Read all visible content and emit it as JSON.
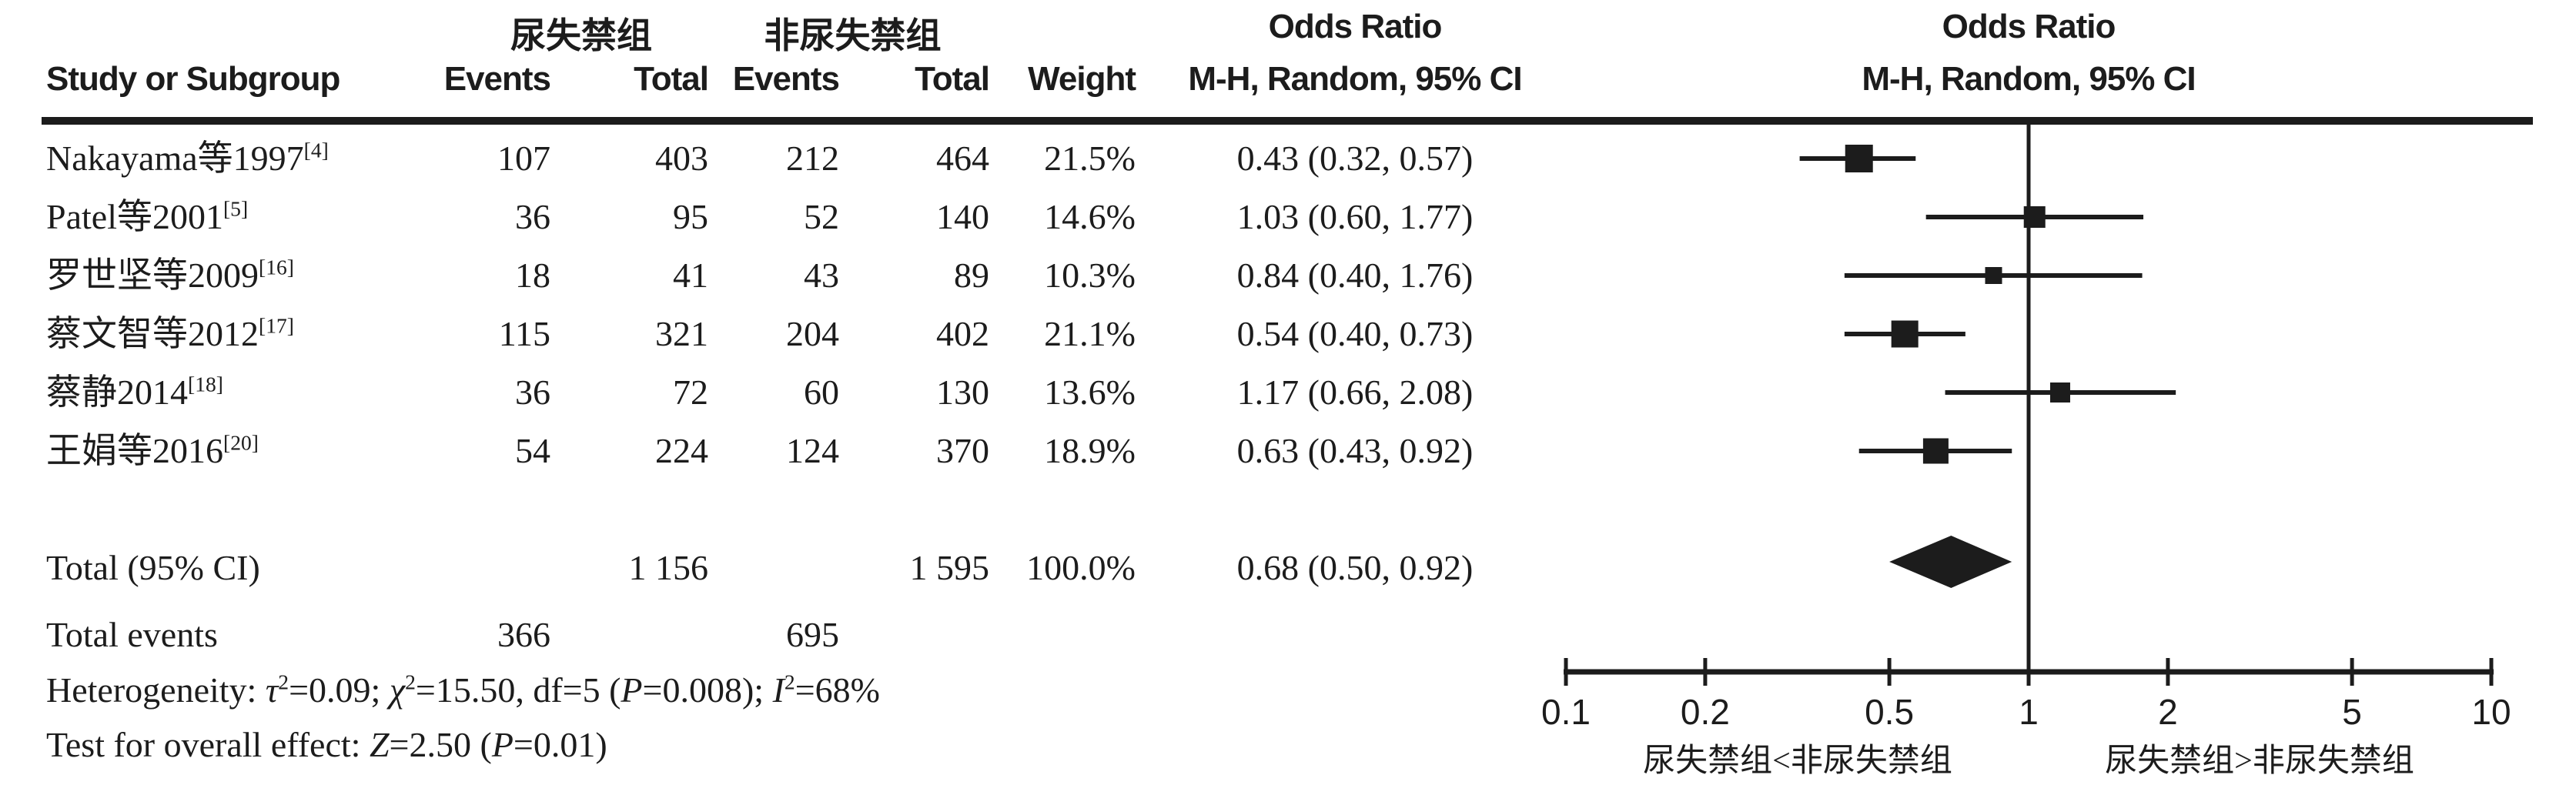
{
  "colors": {
    "ink": "#1c1c1c",
    "background": "#ffffff"
  },
  "table": {
    "study_header": "Study or Subgroup",
    "group1_header": "尿失禁组",
    "group2_header": "非尿失禁组",
    "events_header_1": "Events",
    "total_header_1": "Total",
    "events_header_2": "Events",
    "total_header_2": "Total",
    "weight_header": "Weight",
    "or_header": "Odds Ratio",
    "or_subheader": "M-H, Random, 95% CI",
    "plot_header": "Odds Ratio",
    "plot_subheader": "M-H, Random, 95% CI"
  },
  "chart_data": {
    "type": "forest",
    "x_scale": "log",
    "xlim": [
      0.1,
      10
    ],
    "x_ticks": [
      0.1,
      0.2,
      0.5,
      1,
      2,
      5,
      10
    ],
    "x_tick_labels": [
      "0.1",
      "0.2",
      "0.5",
      "1",
      "2",
      "5",
      "10"
    ],
    "axis_label_left": "尿失禁组<非尿失禁组",
    "axis_label_right": "尿失禁组>非尿失禁组",
    "studies": [
      {
        "label": "Nakayama等1997",
        "ref": "[4]",
        "events1": 107,
        "total1": 403,
        "events2": 212,
        "total2": 464,
        "weight": "21.5%",
        "weight_value": 21.5,
        "or": 0.43,
        "ci_low": 0.32,
        "ci_high": 0.57,
        "or_text": "0.43 (0.32, 0.57)"
      },
      {
        "label": "Patel等2001",
        "ref": "[5]",
        "events1": 36,
        "total1": 95,
        "events2": 52,
        "total2": 140,
        "weight": "14.6%",
        "weight_value": 14.6,
        "or": 1.03,
        "ci_low": 0.6,
        "ci_high": 1.77,
        "or_text": "1.03 (0.60, 1.77)"
      },
      {
        "label": "罗世坚等2009",
        "ref": "[16]",
        "events1": 18,
        "total1": 41,
        "events2": 43,
        "total2": 89,
        "weight": "10.3%",
        "weight_value": 10.3,
        "or": 0.84,
        "ci_low": 0.4,
        "ci_high": 1.76,
        "or_text": "0.84 (0.40, 1.76)"
      },
      {
        "label": "蔡文智等2012",
        "ref": "[17]",
        "events1": 115,
        "total1": 321,
        "events2": 204,
        "total2": 402,
        "weight": "21.1%",
        "weight_value": 21.1,
        "or": 0.54,
        "ci_low": 0.4,
        "ci_high": 0.73,
        "or_text": "0.54 (0.40, 0.73)"
      },
      {
        "label": "蔡静2014",
        "ref": "[18]",
        "events1": 36,
        "total1": 72,
        "events2": 60,
        "total2": 130,
        "weight": "13.6%",
        "weight_value": 13.6,
        "or": 1.17,
        "ci_low": 0.66,
        "ci_high": 2.08,
        "or_text": "1.17 (0.66, 2.08)"
      },
      {
        "label": "王娟等2016",
        "ref": "[20]",
        "events1": 54,
        "total1": 224,
        "events2": 124,
        "total2": 370,
        "weight": "18.9%",
        "weight_value": 18.9,
        "or": 0.63,
        "ci_low": 0.43,
        "ci_high": 0.92,
        "or_text": "0.63 (0.43, 0.92)"
      }
    ],
    "total": {
      "label": "Total (95% CI)",
      "total1": "1 156",
      "total2": "1 595",
      "weight": "100.0%",
      "or": 0.68,
      "ci_low": 0.5,
      "ci_high": 0.92,
      "or_text": "0.68 (0.50, 0.92)"
    },
    "total_events": {
      "label": "Total events",
      "events1": 366,
      "events2": 695
    },
    "heterogeneity_segments": [
      {
        "t": "Heterogeneity: "
      },
      {
        "t": "τ",
        "i": 1
      },
      {
        "t": "2",
        "sup": 1
      },
      {
        "t": "=0.09; "
      },
      {
        "t": "χ",
        "i": 1
      },
      {
        "t": "2",
        "sup": 1
      },
      {
        "t": "=15.50, df=5 ("
      },
      {
        "t": "P",
        "i": 1
      },
      {
        "t": "=0.008); "
      },
      {
        "t": "I",
        "i": 1
      },
      {
        "t": "2",
        "sup": 1
      },
      {
        "t": "=68%"
      }
    ],
    "overall_effect_segments": [
      {
        "t": "Test for overall effect: "
      },
      {
        "t": "Z",
        "i": 1
      },
      {
        "t": "=2.50 ("
      },
      {
        "t": "P",
        "i": 1
      },
      {
        "t": "=0.01)"
      }
    ]
  }
}
